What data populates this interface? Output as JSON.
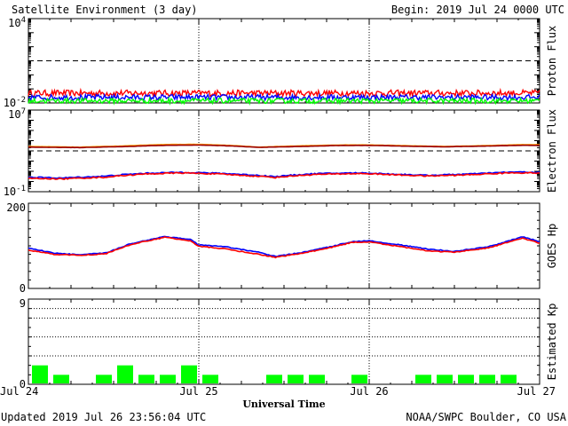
{
  "header": {
    "title": "Satellite Environment (3 day)",
    "begin": "Begin:  2019 Jul 24 0000 UTC"
  },
  "footer": {
    "updated": "Updated 2019 Jul 26 23:56:04 UTC",
    "credit": "NOAA/SWPC Boulder, CO USA"
  },
  "colors": {
    "red": "#ff0000",
    "blue": "#0000ff",
    "green": "#00ff00",
    "orange": "#ff9900",
    "maroon": "#990000",
    "kp_bar": "#00ff00"
  },
  "chart_data": [
    {
      "type": "line",
      "title": "Proton Flux",
      "ylabel": "Proton Flux",
      "yscale": "log",
      "ylim": [
        0.01,
        10000
      ],
      "tick_labels": {
        "top": "10^4",
        "bottom": "10^-2"
      },
      "xlim": [
        0,
        3
      ],
      "x_tick_labels": [
        "Jul 24",
        "Jul 25",
        "Jul 26",
        "Jul 27"
      ],
      "threshold": 10,
      "series": [
        {
          "color": "red",
          "level_log10": -1.3,
          "noise": 0.22
        },
        {
          "color": "blue",
          "level_log10": -1.6,
          "noise": 0.2
        },
        {
          "color": "green",
          "level_log10": -1.85,
          "noise": 0.18
        }
      ]
    },
    {
      "type": "line",
      "title": "Electron Flux",
      "ylabel": "Electron Flux",
      "yscale": "log",
      "ylim": [
        0.1,
        10000000
      ],
      "tick_labels": {
        "top": "10^7",
        "bottom": "10^-1"
      },
      "xlim": [
        0,
        3
      ],
      "threshold": 1000,
      "series": [
        {
          "color": "orange",
          "points": [
            [
              0,
              2700
            ],
            [
              0.3,
              2300
            ],
            [
              0.55,
              3000
            ],
            [
              0.8,
              4200
            ],
            [
              1.0,
              4400
            ],
            [
              1.15,
              3600
            ],
            [
              1.35,
              2300
            ],
            [
              1.6,
              3100
            ],
            [
              1.85,
              3800
            ],
            [
              2.0,
              3800
            ],
            [
              2.25,
              3100
            ],
            [
              2.45,
              2700
            ],
            [
              2.7,
              3300
            ],
            [
              2.9,
              4100
            ],
            [
              3.0,
              4100
            ]
          ]
        },
        {
          "color": "maroon",
          "points": [
            [
              0,
              2300
            ],
            [
              0.3,
              2100
            ],
            [
              0.55,
              2600
            ],
            [
              0.8,
              3500
            ],
            [
              1.0,
              3700
            ],
            [
              1.15,
              3200
            ],
            [
              1.35,
              2200
            ],
            [
              1.6,
              2700
            ],
            [
              1.85,
              3400
            ],
            [
              2.0,
              3400
            ],
            [
              2.25,
              2800
            ],
            [
              2.45,
              2500
            ],
            [
              2.7,
              3000
            ],
            [
              2.9,
              3500
            ],
            [
              3.0,
              3500
            ]
          ]
        },
        {
          "color": "blue",
          "points": [
            [
              0,
              2.6
            ],
            [
              0.2,
              2.2
            ],
            [
              0.45,
              3.3
            ],
            [
              0.7,
              6.5
            ],
            [
              0.9,
              8.0
            ],
            [
              1.1,
              6.5
            ],
            [
              1.3,
              4.5
            ],
            [
              1.45,
              3.0
            ],
            [
              1.7,
              6.0
            ],
            [
              1.95,
              7.0
            ],
            [
              2.15,
              5.2
            ],
            [
              2.35,
              4.0
            ],
            [
              2.6,
              5.5
            ],
            [
              2.85,
              8.5
            ],
            [
              3.0,
              8.0
            ]
          ]
        },
        {
          "color": "red",
          "points": [
            [
              0,
              2.0
            ],
            [
              0.2,
              1.8
            ],
            [
              0.45,
              2.6
            ],
            [
              0.7,
              5.5
            ],
            [
              0.9,
              7.0
            ],
            [
              1.1,
              5.5
            ],
            [
              1.3,
              3.6
            ],
            [
              1.45,
              2.5
            ],
            [
              1.7,
              5.0
            ],
            [
              1.95,
              6.0
            ],
            [
              2.15,
              4.5
            ],
            [
              2.35,
              3.4
            ],
            [
              2.6,
              4.6
            ],
            [
              2.85,
              7.2
            ],
            [
              3.0,
              6.8
            ]
          ]
        }
      ]
    },
    {
      "type": "line",
      "title": "GOES Hp",
      "ylabel": "GOES Hp",
      "ylim": [
        0,
        200
      ],
      "tick_labels": {
        "top": "200",
        "bottom": "0"
      },
      "xlim": [
        0,
        3
      ],
      "series": [
        {
          "color": "blue",
          "points": [
            [
              0,
              95
            ],
            [
              0.15,
              83
            ],
            [
              0.3,
              79
            ],
            [
              0.45,
              83
            ],
            [
              0.6,
              105
            ],
            [
              0.8,
              122
            ],
            [
              0.95,
              115
            ],
            [
              1.0,
              102
            ],
            [
              1.15,
              98
            ],
            [
              1.35,
              85
            ],
            [
              1.45,
              75
            ],
            [
              1.6,
              84
            ],
            [
              1.75,
              96
            ],
            [
              1.9,
              110
            ],
            [
              2.0,
              112
            ],
            [
              2.15,
              104
            ],
            [
              2.35,
              92
            ],
            [
              2.5,
              87
            ],
            [
              2.7,
              98
            ],
            [
              2.9,
              121
            ],
            [
              3.0,
              110
            ]
          ]
        },
        {
          "color": "red",
          "points": [
            [
              0,
              90
            ],
            [
              0.15,
              80
            ],
            [
              0.3,
              78
            ],
            [
              0.45,
              81
            ],
            [
              0.6,
              103
            ],
            [
              0.8,
              120
            ],
            [
              0.95,
              112
            ],
            [
              1.0,
              99
            ],
            [
              1.15,
              93
            ],
            [
              1.35,
              80
            ],
            [
              1.45,
              73
            ],
            [
              1.6,
              82
            ],
            [
              1.75,
              94
            ],
            [
              1.9,
              108
            ],
            [
              2.0,
              109
            ],
            [
              2.15,
              100
            ],
            [
              2.35,
              88
            ],
            [
              2.5,
              85
            ],
            [
              2.7,
              95
            ],
            [
              2.9,
              118
            ],
            [
              3.0,
              106
            ]
          ]
        }
      ]
    },
    {
      "type": "bar",
      "title": "Estimated Kp",
      "ylabel": "Estimated Kp",
      "ylim": [
        0,
        9
      ],
      "tick_labels": {
        "top": "9",
        "bottom": "0"
      },
      "xlabel": "Universal Time",
      "gridlines": [
        3,
        5,
        7,
        8,
        9
      ],
      "interval_hours": 3,
      "values": [
        2,
        1,
        0,
        1,
        2,
        1,
        1,
        2,
        1,
        0,
        0,
        1,
        1,
        1,
        0,
        1,
        0,
        0,
        1,
        1,
        1,
        1,
        1,
        0
      ]
    }
  ]
}
